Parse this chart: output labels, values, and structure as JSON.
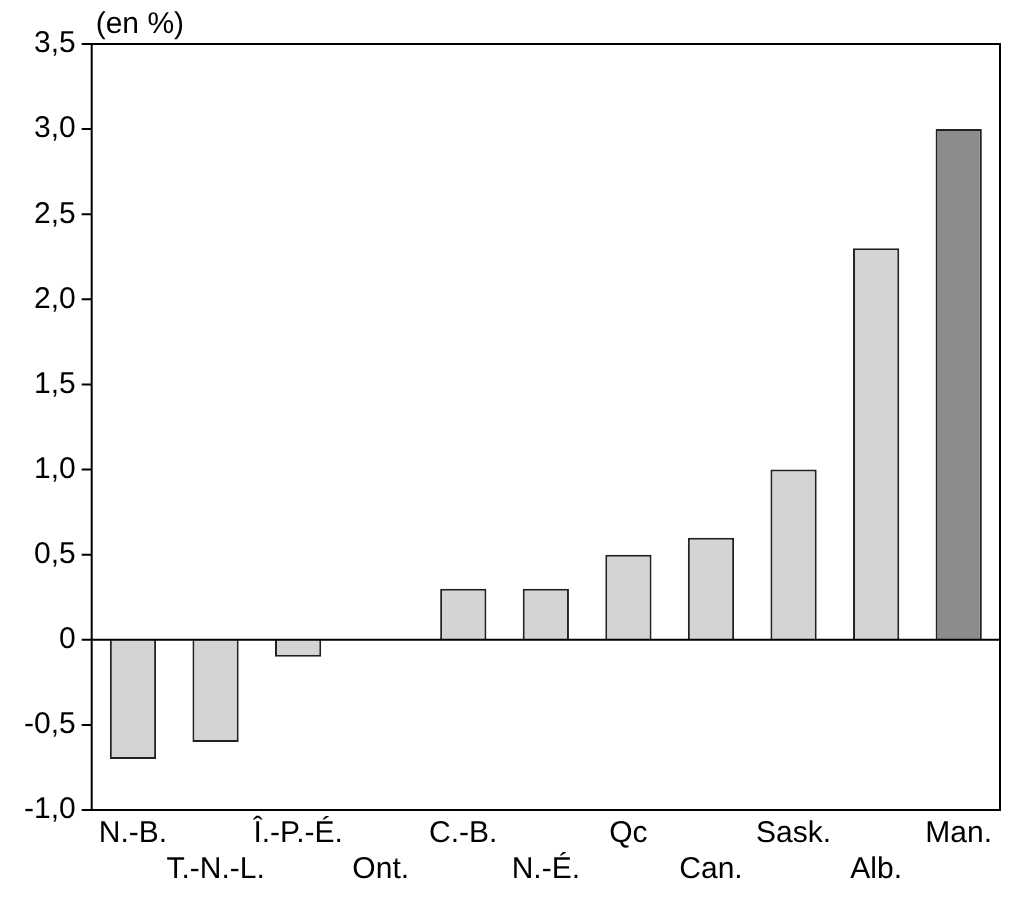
{
  "chart_data": {
    "type": "bar",
    "ylabel": "(en %)",
    "categories": [
      "N.-B.",
      "T.-N.-L.",
      "Î.-P.-É.",
      "Ont.",
      "C.-B.",
      "N.-É.",
      "Qc",
      "Can.",
      "Sask.",
      "Alb.",
      "Man."
    ],
    "values": [
      -0.7,
      -0.6,
      -0.1,
      0,
      0.3,
      0.3,
      0.5,
      0.6,
      1.0,
      2.3,
      3.0
    ],
    "colors": [
      "#d4d4d4",
      "#d4d4d4",
      "#d4d4d4",
      "#d4d4d4",
      "#d4d4d4",
      "#d4d4d4",
      "#d4d4d4",
      "#d4d4d4",
      "#d4d4d4",
      "#d4d4d4",
      "#8c8c8c"
    ],
    "ylim": [
      -1.0,
      3.5
    ],
    "yticks": [
      {
        "value": -1.0,
        "label": "-1,0"
      },
      {
        "value": -0.5,
        "label": "-0,5"
      },
      0,
      {
        "value": 0.5,
        "label": "0,5"
      },
      {
        "value": 1.0,
        "label": "1,0"
      },
      {
        "value": 1.5,
        "label": "1,5"
      },
      {
        "value": 2.0,
        "label": "2,0"
      },
      {
        "value": 2.5,
        "label": "2,5"
      },
      {
        "value": 3.0,
        "label": "3,0"
      },
      {
        "value": 3.5,
        "label": "3,5"
      }
    ],
    "ref_lines": [
      {
        "axis": "y",
        "value": 0,
        "color": "#000000"
      }
    ],
    "grid": false,
    "legend": false
  }
}
